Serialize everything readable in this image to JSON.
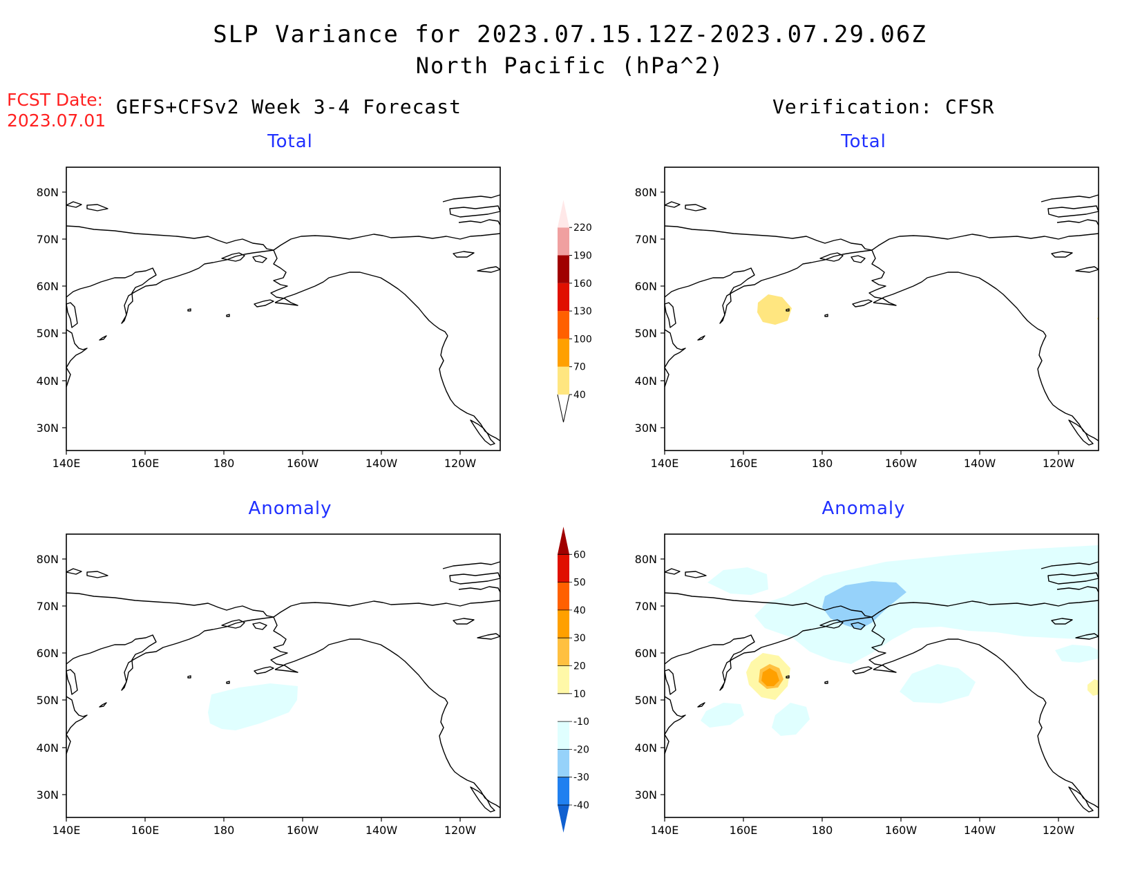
{
  "title": {
    "line1": "SLP Variance for 2023.07.15.12Z-2023.07.29.06Z",
    "line2": "North Pacific (hPa^2)"
  },
  "forecast_date": {
    "label": "FCST Date:",
    "value": "2023.07.01"
  },
  "columns": {
    "left": "GEFS+CFSv2 Week 3-4 Forecast",
    "right": "Verification: CFSR"
  },
  "panels": {
    "top_left_title": "Total",
    "top_right_title": "Total",
    "bottom_left_title": "Anomaly",
    "bottom_right_title": "Anomaly"
  },
  "axes": {
    "lat_labels": [
      "80N",
      "70N",
      "60N",
      "50N",
      "40N",
      "30N"
    ],
    "lon_labels": [
      "140E",
      "160E",
      "180",
      "160W",
      "140W",
      "120W"
    ]
  },
  "colorbar_total": {
    "levels": [
      "40",
      "70",
      "100",
      "130",
      "160",
      "190",
      "220"
    ],
    "colors": [
      "#ffe680",
      "#ffa000",
      "#ff6000",
      "#e01000",
      "#a00000",
      "#f0a0a0",
      "#ffe8e8"
    ]
  },
  "colorbar_anomaly": {
    "levels": [
      "-40",
      "-30",
      "-20",
      "-10",
      "10",
      "20",
      "30",
      "40",
      "50",
      "60"
    ],
    "colors": [
      "#1060d0",
      "#2080f0",
      "#96d2fa",
      "#e0ffff",
      "#ffffff",
      "#fff8a8",
      "#ffc040",
      "#ffa000",
      "#ff6000",
      "#e01000",
      "#a00000"
    ]
  }
}
